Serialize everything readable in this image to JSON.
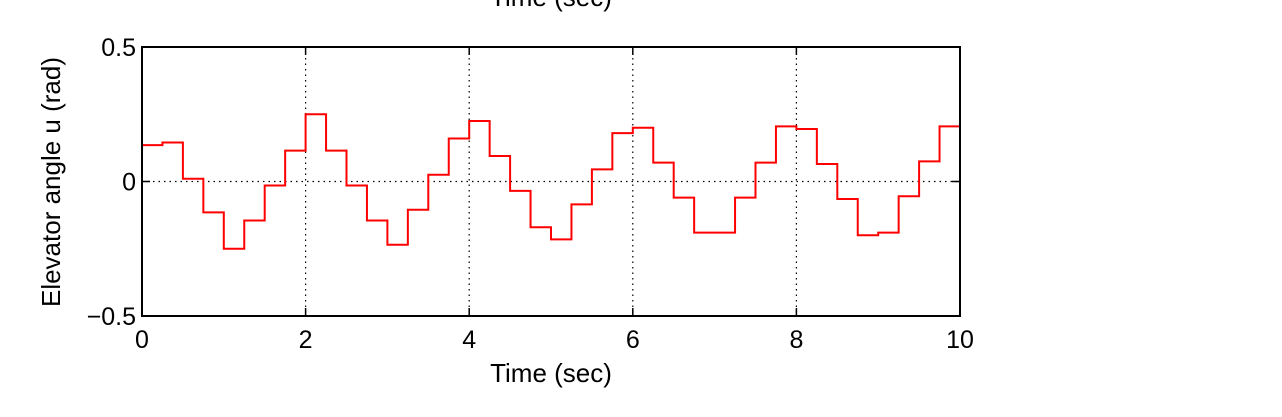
{
  "chart_data": {
    "type": "line",
    "title": "",
    "top_clipped_label": "Time (sec)",
    "xlabel": "Time (sec)",
    "ylabel": "Elevator angle u (rad)",
    "xlim": [
      0,
      10
    ],
    "ylim": [
      -0.5,
      0.5
    ],
    "xticks": [
      0,
      2,
      4,
      6,
      8,
      10
    ],
    "xtick_labels": [
      "0",
      "2",
      "4",
      "6",
      "8",
      "10"
    ],
    "yticks": [
      -0.5,
      0,
      0.5
    ],
    "ytick_labels": [
      "−0.5",
      "0",
      "0.5"
    ],
    "grid": true,
    "step": "post",
    "series": [
      {
        "color": "#ff0000",
        "x": [
          0,
          0.25,
          0.5,
          0.75,
          1.0,
          1.25,
          1.5,
          1.75,
          2.0,
          2.25,
          2.5,
          2.75,
          3.0,
          3.25,
          3.5,
          3.75,
          4.0,
          4.25,
          4.5,
          4.75,
          5.0,
          5.25,
          5.5,
          5.75,
          6.0,
          6.25,
          6.5,
          6.75,
          7.0,
          7.25,
          7.5,
          7.75,
          8.0,
          8.25,
          8.5,
          8.75,
          9.0,
          9.25,
          9.5,
          9.75,
          10.0
        ],
        "y": [
          0.135,
          0.145,
          0.01,
          -0.115,
          -0.25,
          -0.145,
          -0.015,
          0.115,
          0.25,
          0.115,
          -0.015,
          -0.145,
          -0.235,
          -0.105,
          0.025,
          0.16,
          0.225,
          0.095,
          -0.035,
          -0.17,
          -0.215,
          -0.085,
          0.045,
          0.18,
          0.2,
          0.07,
          -0.06,
          -0.19,
          -0.19,
          -0.06,
          0.07,
          0.205,
          0.195,
          0.065,
          -0.065,
          -0.2,
          -0.19,
          -0.055,
          0.075,
          0.205,
          0.205
        ]
      }
    ]
  }
}
